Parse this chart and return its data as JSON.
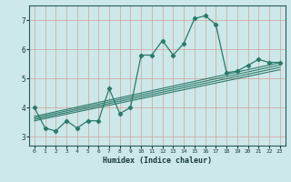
{
  "xlabel": "Humidex (Indice chaleur)",
  "ylabel": "",
  "bg_color": "#cce8e8",
  "grid_color": "#d4a0a0",
  "line_color": "#2a7a6a",
  "xlim": [
    -0.5,
    23.5
  ],
  "ylim": [
    2.7,
    7.5
  ],
  "xticks": [
    0,
    1,
    2,
    3,
    4,
    5,
    6,
    7,
    8,
    9,
    10,
    11,
    12,
    13,
    14,
    15,
    16,
    17,
    18,
    19,
    20,
    21,
    22,
    23
  ],
  "yticks": [
    3,
    4,
    5,
    6,
    7
  ],
  "main_line": {
    "x": [
      0,
      1,
      2,
      3,
      4,
      5,
      6,
      7,
      8,
      9,
      10,
      11,
      12,
      13,
      14,
      15,
      16,
      17,
      18,
      19,
      20,
      21,
      22,
      23
    ],
    "y": [
      4.0,
      3.3,
      3.2,
      3.55,
      3.3,
      3.55,
      3.55,
      4.65,
      3.8,
      4.0,
      5.8,
      5.8,
      6.3,
      5.8,
      6.2,
      7.05,
      7.15,
      6.85,
      5.2,
      5.25,
      5.45,
      5.65,
      5.55,
      5.55
    ]
  },
  "straight_lines": [
    {
      "x": [
        0,
        23
      ],
      "y": [
        3.55,
        5.3
      ]
    },
    {
      "x": [
        0,
        23
      ],
      "y": [
        3.6,
        5.38
      ]
    },
    {
      "x": [
        0,
        23
      ],
      "y": [
        3.65,
        5.46
      ]
    },
    {
      "x": [
        0,
        23
      ],
      "y": [
        3.7,
        5.54
      ]
    }
  ]
}
